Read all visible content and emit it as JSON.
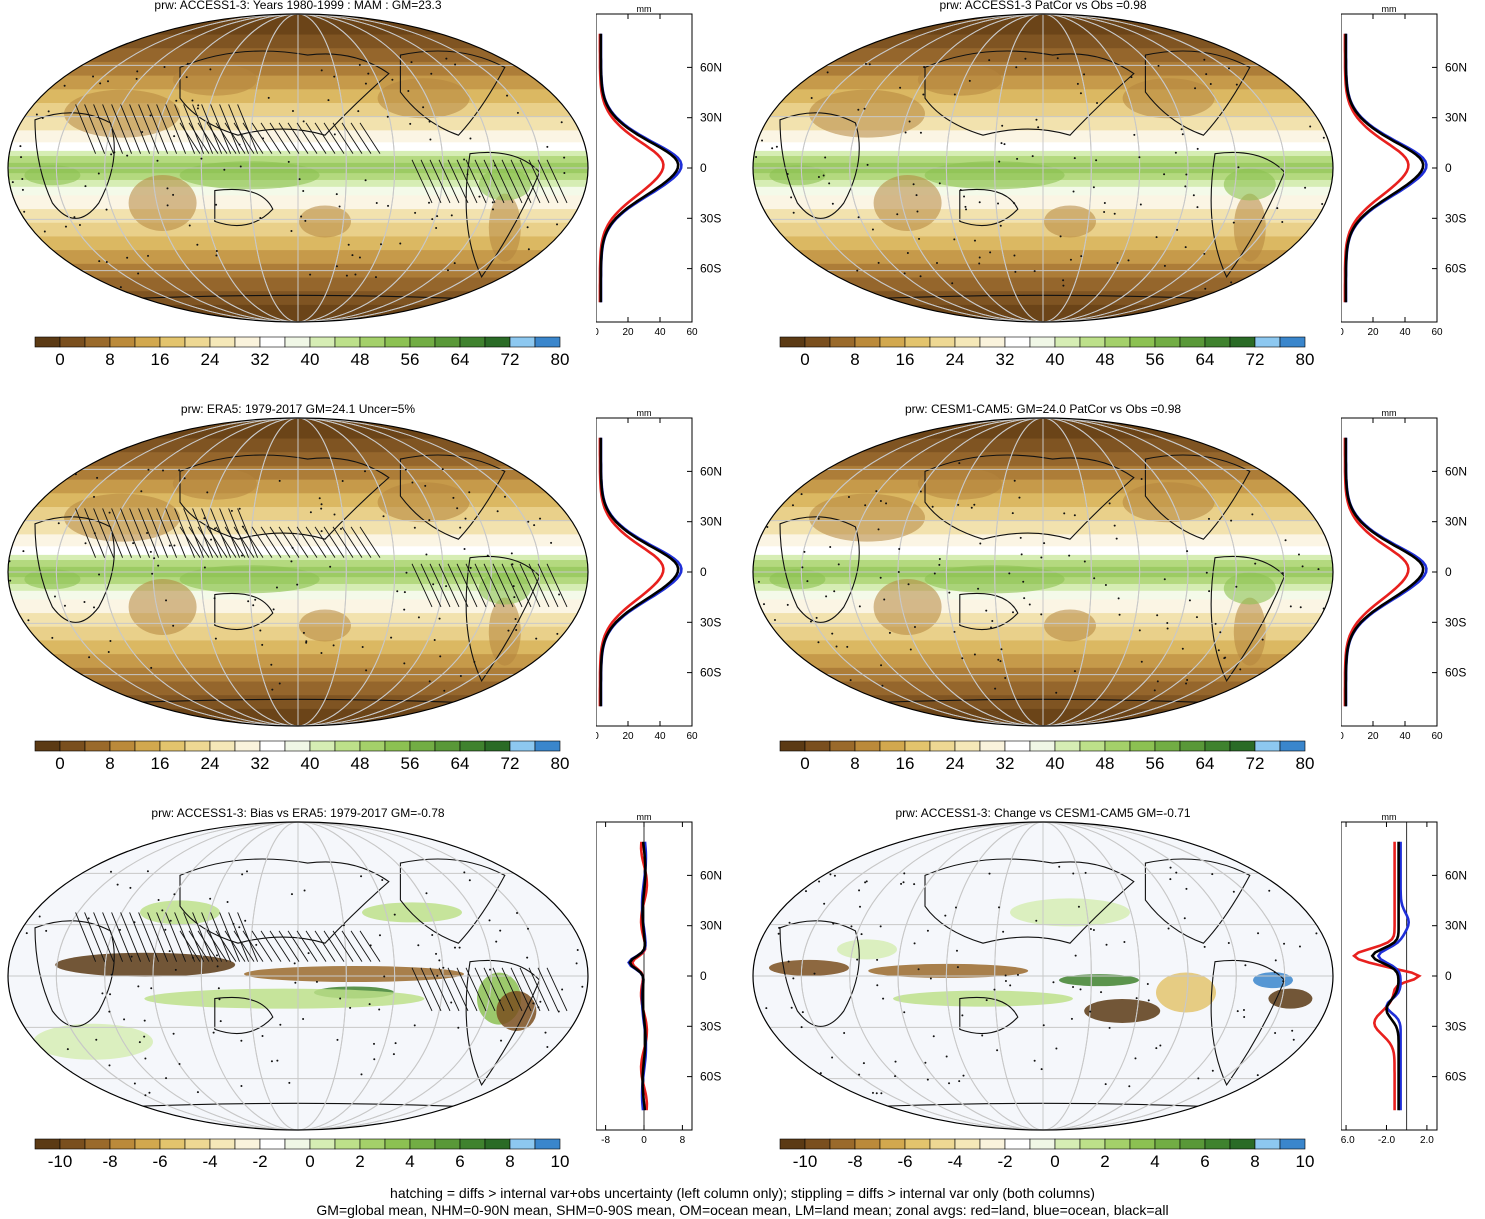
{
  "panels": [
    {
      "id": "p1",
      "title": "prw: ACCESS1-3: Years 1980-1999 : MAM : GM=23.3",
      "kind": "clim",
      "hatch": true,
      "xticks": [
        "0",
        "20",
        "40",
        "60"
      ],
      "xmin": 0,
      "xmax": 60
    },
    {
      "id": "p2",
      "title": "prw: ACCESS1-3 PatCor vs Obs =0.98",
      "kind": "clim",
      "hatch": false,
      "xticks": [
        "0",
        "20",
        "40",
        "60"
      ],
      "xmin": 0,
      "xmax": 60
    },
    {
      "id": "p3",
      "title": "prw: ERA5: 1979-2017 GM=24.1 Uncer=5%",
      "kind": "clim",
      "hatch": true,
      "xticks": [
        "0",
        "20",
        "40",
        "60"
      ],
      "xmin": 0,
      "xmax": 60
    },
    {
      "id": "p4",
      "title": "prw: CESM1-CAM5: GM=24.0 PatCor vs Obs =0.98",
      "kind": "clim",
      "hatch": false,
      "xticks": [
        "0",
        "20",
        "40",
        "60"
      ],
      "xmin": 0,
      "xmax": 60
    },
    {
      "id": "p5",
      "title": "prw: ACCESS1-3: Bias vs ERA5: 1979-2017 GM=-0.78",
      "kind": "diff",
      "hatch": true,
      "xticks": [
        "-8",
        "0",
        "8"
      ],
      "xmin": -10,
      "xmax": 10
    },
    {
      "id": "p6",
      "title": "prw: ACCESS1-3: Change vs CESM1-CAM5 GM=-0.71",
      "kind": "diff",
      "hatch": false,
      "xticks": [
        "-6.0",
        "-2.0",
        "2.0"
      ],
      "xmin": -6.5,
      "xmax": 3.0
    }
  ],
  "zonal_axis": {
    "unit": "mm",
    "lat_ticks": [
      "60N",
      "30N",
      "0",
      "30S",
      "60S"
    ],
    "lat_values": [
      60,
      30,
      0,
      -30,
      -60
    ]
  },
  "colorbars": {
    "clim": {
      "labels": [
        "0",
        "8",
        "16",
        "24",
        "32",
        "40",
        "48",
        "56",
        "64",
        "72",
        "80"
      ],
      "colors": [
        "#5b3a14",
        "#7a4f1e",
        "#9a6a2b",
        "#bb8a3a",
        "#d2a84e",
        "#e3c46d",
        "#eed893",
        "#f5e8b8",
        "#faf3dc",
        "#ffffff",
        "#f0f7e6",
        "#d6edb4",
        "#bde08a",
        "#a4d06a",
        "#8cc152",
        "#72ad44",
        "#599838",
        "#3f822e",
        "#2a6b26",
        "#8dc8f0",
        "#3a86cc"
      ]
    },
    "diff": {
      "labels": [
        "-10",
        "-8",
        "-6",
        "-4",
        "-2",
        "0",
        "2",
        "4",
        "6",
        "8",
        "10"
      ],
      "colors": [
        "#5b3a14",
        "#7a4f1e",
        "#9a6a2b",
        "#bb8a3a",
        "#d2a84e",
        "#e3c46d",
        "#eed893",
        "#f5e8b8",
        "#faf3dc",
        "#ffffff",
        "#f0f7e6",
        "#d6edb4",
        "#bde08a",
        "#a4d06a",
        "#8cc152",
        "#72ad44",
        "#599838",
        "#3f822e",
        "#2a6b26",
        "#8dc8f0",
        "#3a86cc"
      ]
    }
  },
  "line_colors": {
    "land": "#e8201e",
    "ocean": "#1f2fd8",
    "all": "#000000"
  },
  "footer": {
    "line1": "hatching = diffs > internal var+obs uncertainty (left column only); stippling = diffs > internal var only (both columns)",
    "line2": "GM=global mean, NHM=0-90N mean, SHM=0-90S mean, OM=ocean mean, LM=land mean; zonal avgs: red=land, blue=ocean, black=all"
  }
}
